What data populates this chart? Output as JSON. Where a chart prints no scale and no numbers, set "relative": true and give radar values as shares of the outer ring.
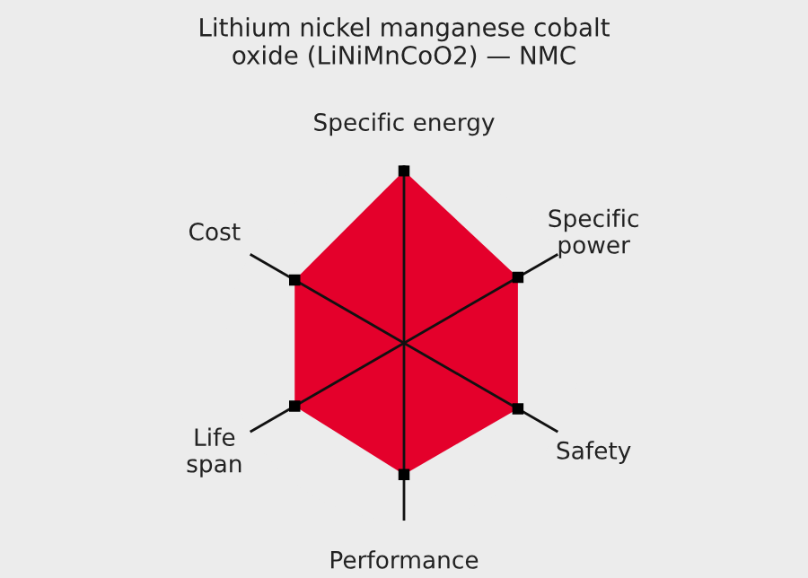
{
  "chart_data": {
    "type": "radar",
    "title": "Lithium nickel manganese cobalt\noxide (LiNiMnCoO2) — NMC",
    "categories": [
      "Specific energy",
      "Specific\npower",
      "Safety",
      "Performance",
      "Life\nspan",
      "Cost"
    ],
    "relative": true,
    "grid": "x",
    "marker": "square",
    "legend": false,
    "series": [
      {
        "color": "#e4002b",
        "values": [
          0.97,
          0.74,
          0.74,
          0.74,
          0.71,
          0.71
        ]
      }
    ]
  }
}
